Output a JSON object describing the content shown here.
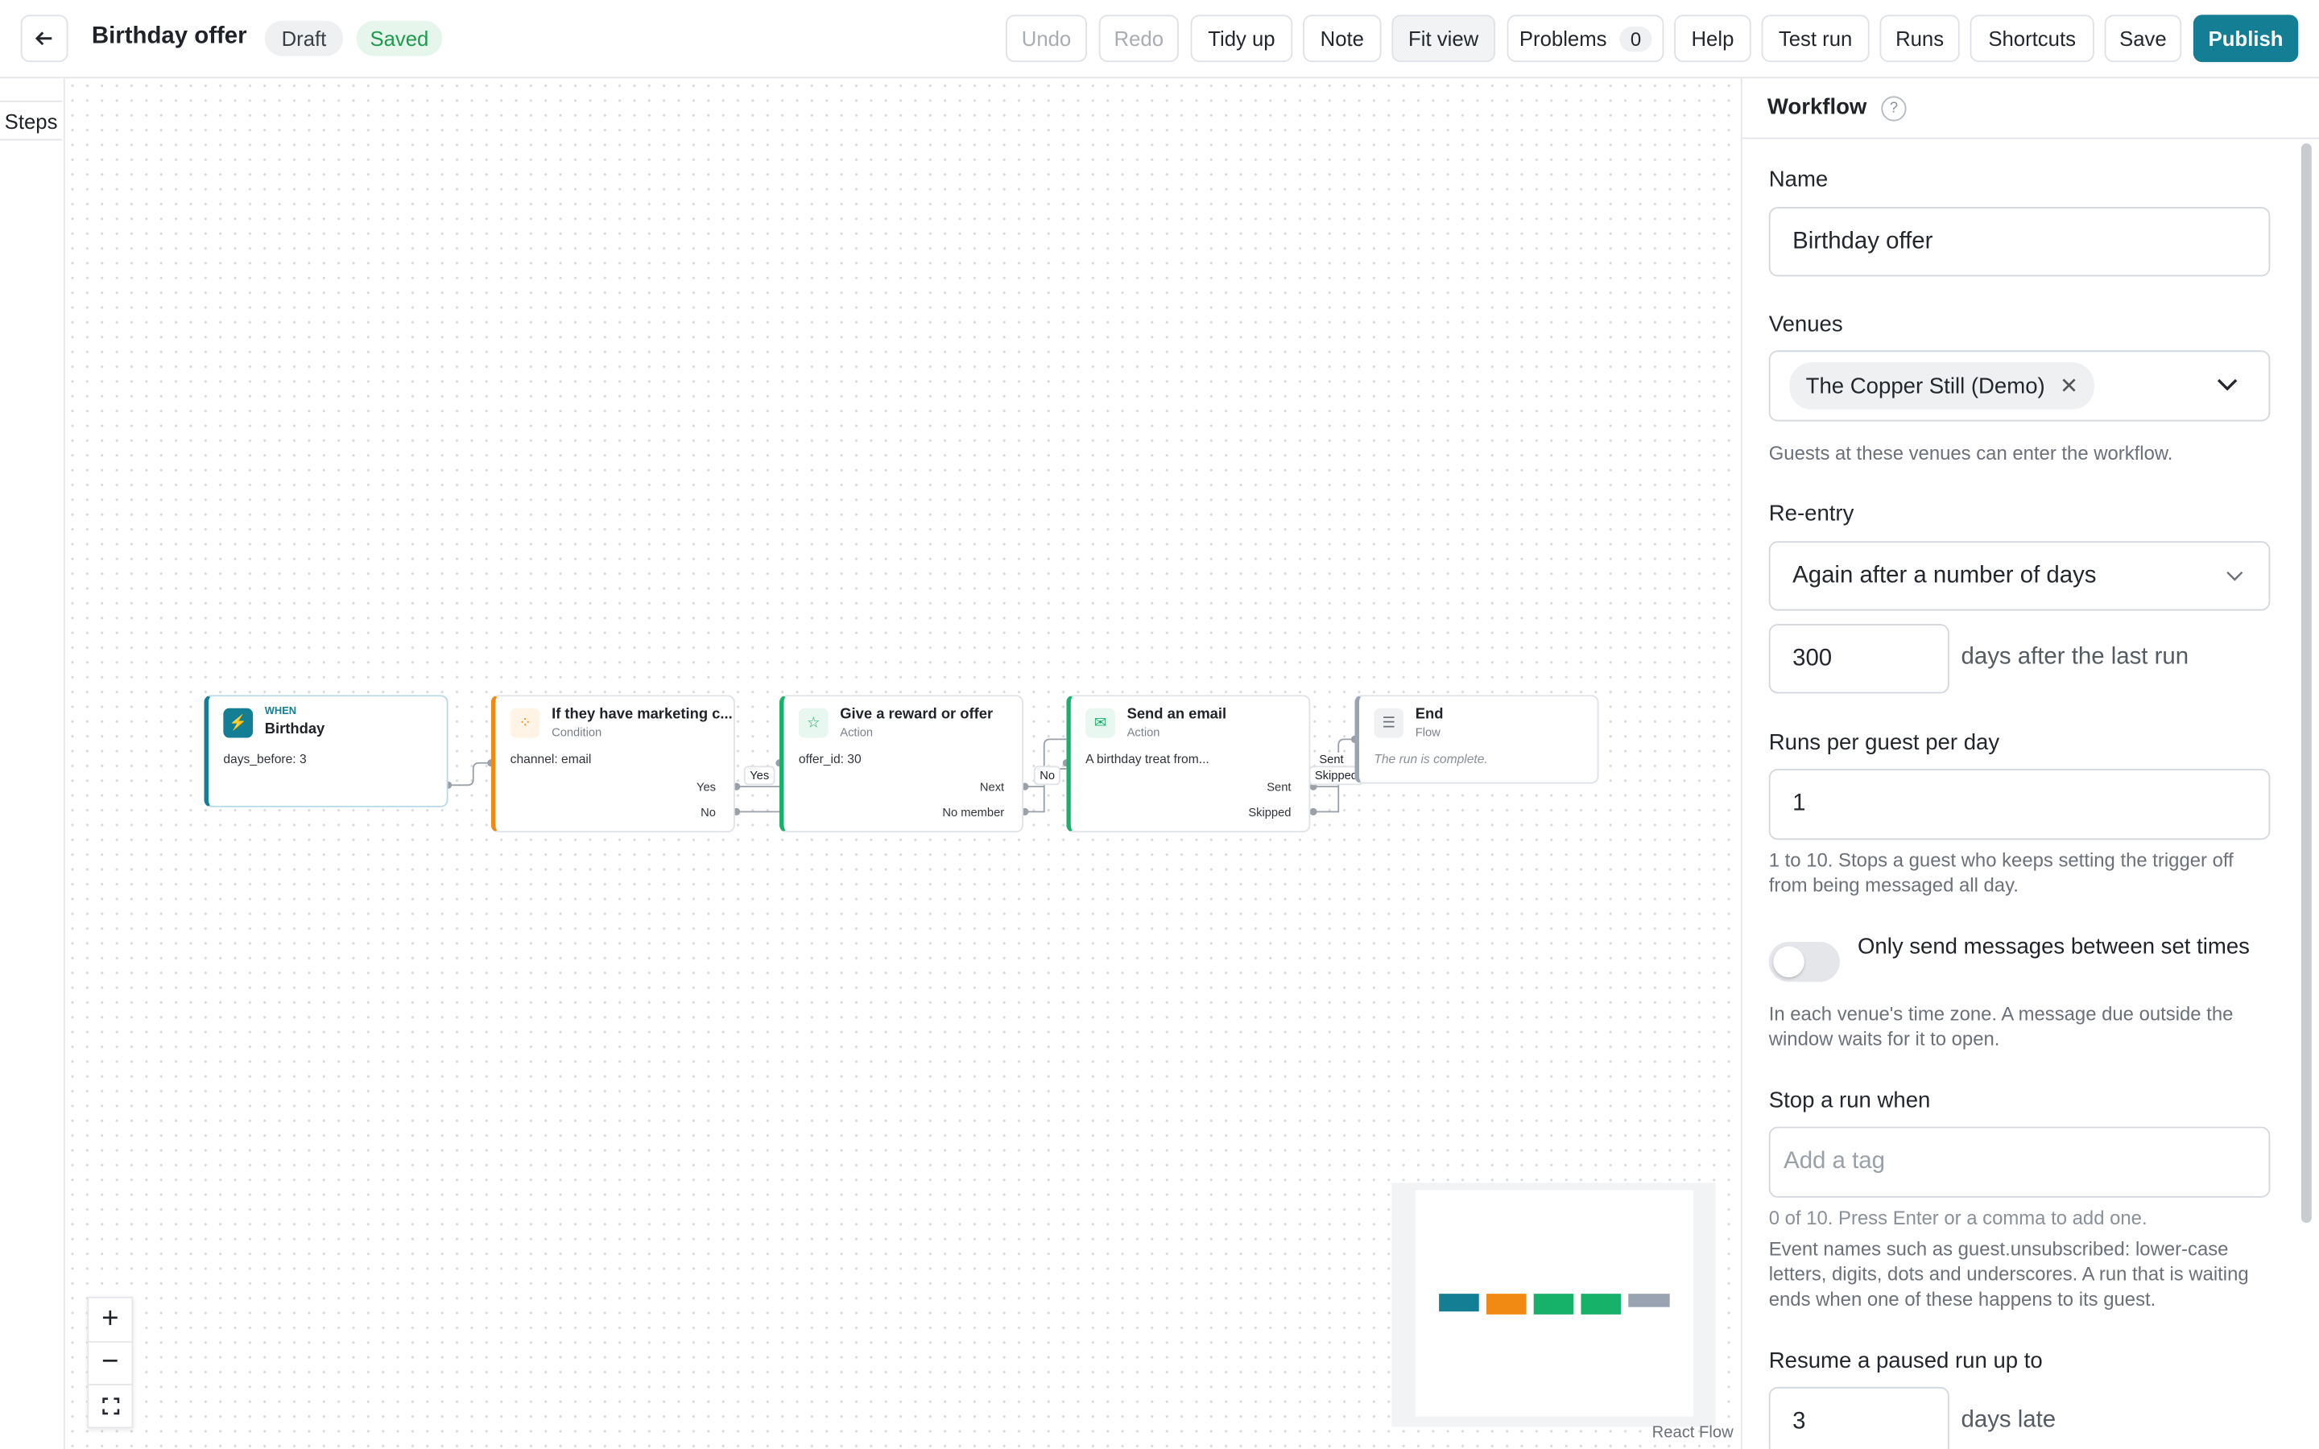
{
  "header": {
    "title": "Birthday offer",
    "badges": [
      "Draft",
      "Saved"
    ],
    "buttons": [
      "Undo",
      "Redo",
      "Tidy up",
      "Note",
      "Fit view",
      "Problems",
      "Help",
      "Test run",
      "Runs",
      "Shortcuts",
      "Save",
      "Publish"
    ],
    "problems_count": "0"
  },
  "sidebar": {
    "tab": "Steps"
  },
  "canvas": {
    "nodes": [
      {
        "kicker": "WHEN",
        "title": "Birthday",
        "detail": "days_before: 3"
      },
      {
        "title": "If they have marketing c...",
        "kind": "Condition",
        "detail": "channel: email",
        "handles": [
          "Yes",
          "No"
        ]
      },
      {
        "title": "Give a reward or offer",
        "kind": "Action",
        "detail": "offer_id: 30",
        "handles": [
          "Next",
          "No member"
        ]
      },
      {
        "title": "Send an email",
        "kind": "Action",
        "detail": "A birthday treat from...",
        "handles": [
          "Sent",
          "Skipped"
        ]
      },
      {
        "title": "End",
        "kind": "Flow",
        "detail": "The run is complete."
      }
    ],
    "edge_labels": [
      "Yes",
      "No",
      "Sent",
      "Skipped"
    ],
    "attribution": "React Flow"
  },
  "panel": {
    "title": "Workflow",
    "help_icon": "?",
    "name_label": "Name",
    "name_value": "Birthday offer",
    "venues_label": "Venues",
    "venue_chip": "The Copper Still (Demo)",
    "venues_help": "Guests at these venues can enter the workflow.",
    "reentry_label": "Re-entry",
    "reentry_value": "Again after a number of days",
    "reentry_days": "300",
    "reentry_suffix": "days after the last run",
    "runs_label": "Runs per guest per day",
    "runs_value": "1",
    "runs_help": "1 to 10. Stops a guest who keeps setting the trigger off from being messaged all day.",
    "toggle_label": "Only send messages between set times",
    "toggle_help": "In each venue's time zone. A message due outside the window waits for it to open.",
    "stop_label": "Stop a run when",
    "stop_placeholder": "Add a tag",
    "stop_count_help": "0 of 10. Press Enter or a comma to add one.",
    "stop_help": "Event names such as guest.unsubscribed: lower-case letters, digits, dots and underscores. A run that is waiting ends when one of these happens to its guest.",
    "resume_label": "Resume a paused run up to",
    "resume_value": "3",
    "resume_suffix": "days late"
  }
}
